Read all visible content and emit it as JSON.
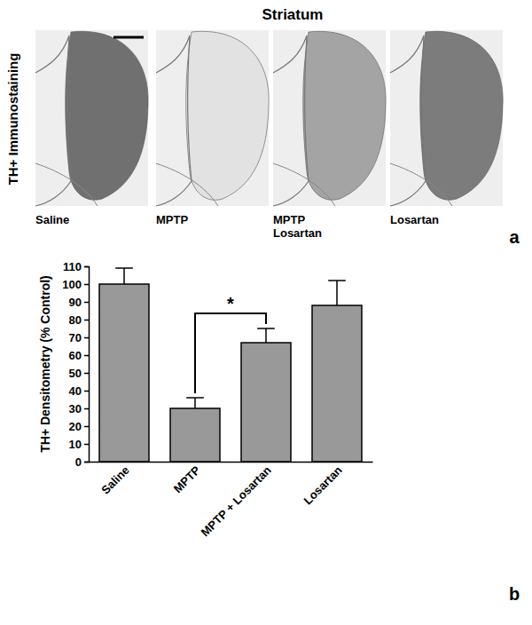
{
  "figure": {
    "panel_a": {
      "title": "Striatum",
      "side_label": "TH+ Immunostaining",
      "labels": [
        [
          "Saline"
        ],
        [
          "MPTP"
        ],
        [
          "MPTP",
          "Losartan"
        ],
        [
          "Losartan"
        ]
      ],
      "letter": "a"
    },
    "panel_b": {
      "letter": "b"
    }
  },
  "chart_data": {
    "type": "bar",
    "categories": [
      "Saline",
      "MPTP",
      "MPTP + Losartan",
      "Losartan"
    ],
    "values": [
      100,
      30,
      67,
      88
    ],
    "errors": [
      9,
      6,
      8,
      14
    ],
    "color": "#999999",
    "y_label": "TH+ Densitometry (% Control)",
    "ylim": [
      0,
      110
    ],
    "yticks": [
      0,
      10,
      20,
      30,
      40,
      50,
      60,
      70,
      80,
      90,
      100,
      110
    ],
    "grid": false,
    "annotations": [
      {
        "text": "*",
        "between": [
          "MPTP",
          "MPTP + Losartan"
        ]
      }
    ]
  }
}
